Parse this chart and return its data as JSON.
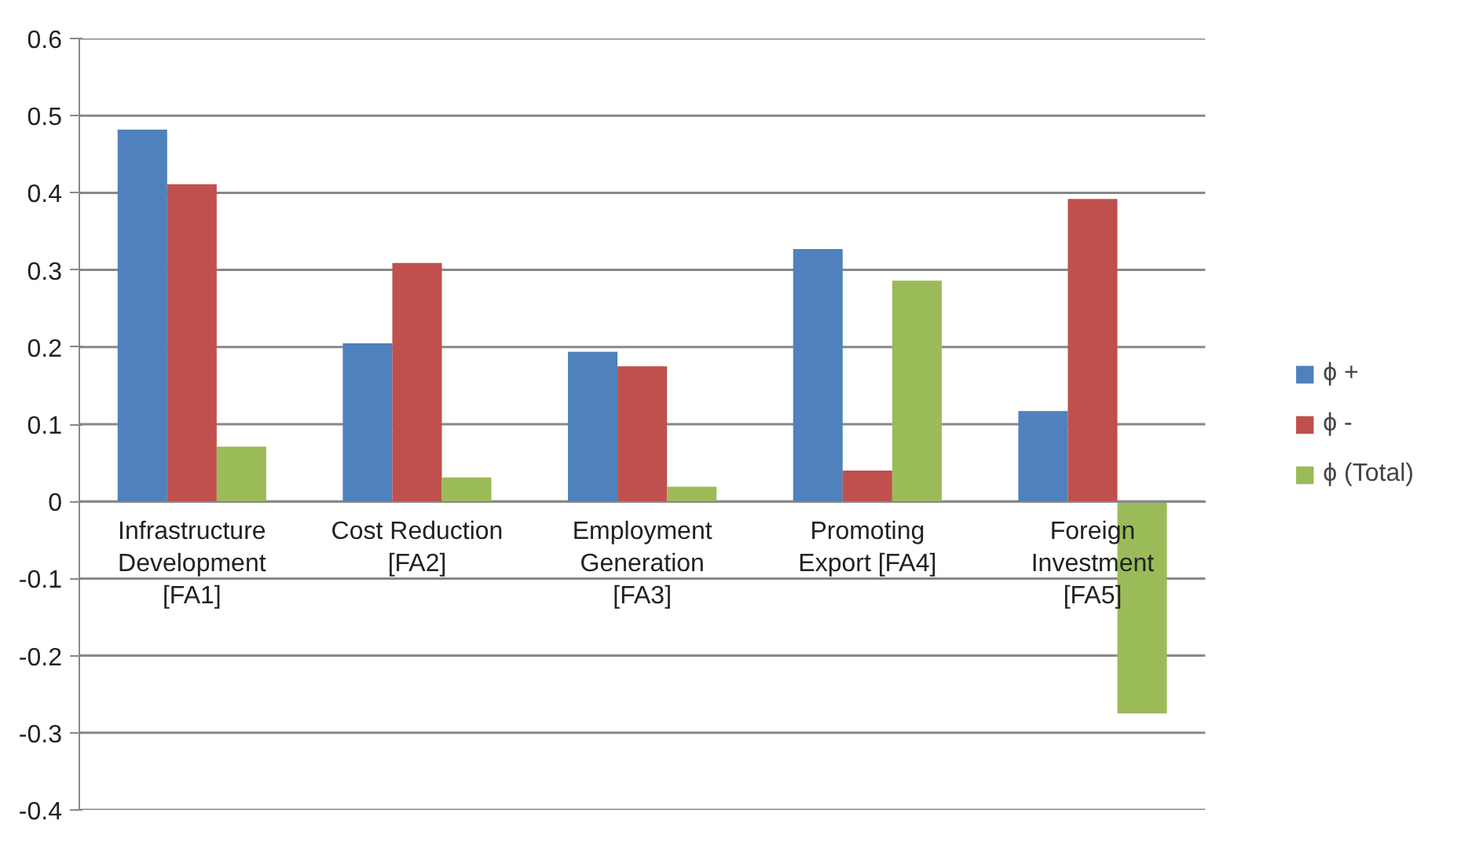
{
  "chart_data": {
    "type": "bar",
    "categories": [
      "Infrastructure Development [FA1]",
      "Cost Reduction [FA2]",
      "Employment Generation [FA3]",
      "Promoting Export [FA4]",
      "Foreign Investment [FA5]"
    ],
    "series": [
      {
        "name": "ϕ +",
        "color": "#4f81bd",
        "values": [
          0.482,
          0.205,
          0.194,
          0.327,
          0.117
        ]
      },
      {
        "name": "ϕ -",
        "color": "#c0504d",
        "values": [
          0.411,
          0.309,
          0.175,
          0.04,
          0.392
        ]
      },
      {
        "name": "ϕ (Total)",
        "color": "#9bbb59",
        "values": [
          0.071,
          0.031,
          0.019,
          0.286,
          -0.275
        ]
      }
    ],
    "ylim": [
      -0.4,
      0.6
    ],
    "yticks": [
      -0.4,
      -0.3,
      -0.2,
      -0.1,
      0,
      0.1,
      0.2,
      0.3,
      0.4,
      0.5,
      0.6
    ],
    "grid": "y",
    "legend": "right"
  }
}
